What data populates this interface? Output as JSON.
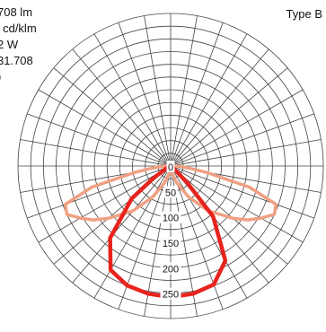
{
  "info_lines": [
    "708 lm",
    "' cd/klm",
    "2 W",
    "31.708",
    ")"
  ],
  "type_label": "Type B",
  "chart_data": {
    "type": "polar",
    "radial_ticks": [
      "0",
      "50",
      "100",
      "150",
      "200",
      "250"
    ],
    "radial_max": 300,
    "angular_step_deg": 10,
    "series": [
      {
        "color": "#f0a082",
        "points": [
          {
            "deg": 0,
            "r": 5
          },
          {
            "deg": 10,
            "r": 15
          },
          {
            "deg": 20,
            "r": 35
          },
          {
            "deg": 30,
            "r": 70
          },
          {
            "deg": 40,
            "r": 115
          },
          {
            "deg": 50,
            "r": 160
          },
          {
            "deg": 55,
            "r": 185
          },
          {
            "deg": 60,
            "r": 205
          },
          {
            "deg": 65,
            "r": 225
          },
          {
            "deg": 70,
            "r": 220
          },
          {
            "deg": 75,
            "r": 160
          },
          {
            "deg": 80,
            "r": 70
          },
          {
            "deg": 85,
            "r": 30
          },
          {
            "deg": 90,
            "r": 10
          },
          {
            "deg": -10,
            "r": 15
          },
          {
            "deg": -20,
            "r": 35
          },
          {
            "deg": -30,
            "r": 70
          },
          {
            "deg": -40,
            "r": 115
          },
          {
            "deg": -50,
            "r": 160
          },
          {
            "deg": -55,
            "r": 185
          },
          {
            "deg": -60,
            "r": 205
          },
          {
            "deg": -65,
            "r": 225
          },
          {
            "deg": -70,
            "r": 220
          },
          {
            "deg": -75,
            "r": 160
          },
          {
            "deg": -80,
            "r": 70
          },
          {
            "deg": -85,
            "r": 30
          },
          {
            "deg": -90,
            "r": 10
          }
        ]
      },
      {
        "color": "#e8231e",
        "points": [
          {
            "deg": 0,
            "r": 258
          },
          {
            "deg": 10,
            "r": 255
          },
          {
            "deg": 20,
            "r": 248
          },
          {
            "deg": 30,
            "r": 215
          },
          {
            "deg": 40,
            "r": 130
          },
          {
            "deg": 45,
            "r": 45
          },
          {
            "deg": 55,
            "r": 5
          },
          {
            "deg": -10,
            "r": 255
          },
          {
            "deg": -20,
            "r": 250
          },
          {
            "deg": -30,
            "r": 236
          },
          {
            "deg": -40,
            "r": 185
          },
          {
            "deg": -50,
            "r": 100
          },
          {
            "deg": -55,
            "r": 40
          },
          {
            "deg": -65,
            "r": 5
          }
        ]
      }
    ]
  }
}
